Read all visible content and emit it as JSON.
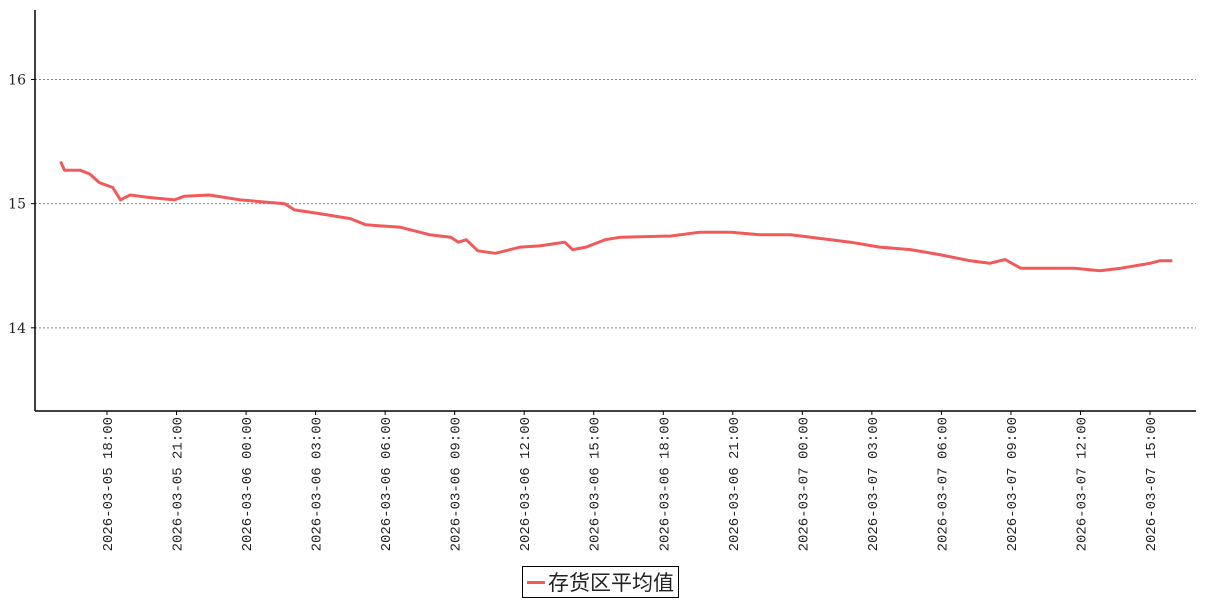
{
  "chart_data": {
    "type": "line",
    "title": "",
    "xlabel": "",
    "ylabel": "",
    "ylim": [
      13.33,
      16.56
    ],
    "yticks": [
      14,
      15,
      16
    ],
    "grid": "horizontal dotted",
    "legend_placement": "bottom-center",
    "xticks": [
      "2026-03-05 18:00",
      "2026-03-05 21:00",
      "2026-03-06 00:00",
      "2026-03-06 03:00",
      "2026-03-06 06:00",
      "2026-03-06 09:00",
      "2026-03-06 12:00",
      "2026-03-06 15:00",
      "2026-03-06 18:00",
      "2026-03-06 21:00",
      "2026-03-07 00:00",
      "2026-03-07 03:00",
      "2026-03-07 06:00",
      "2026-03-07 09:00",
      "2026-03-07 12:00",
      "2026-03-07 15:00"
    ],
    "series": [
      {
        "name": "存货区平均值",
        "color": "#f05a5a",
        "points": [
          [
            "2026-03-05 16:00",
            15.34
          ],
          [
            "2026-03-05 16:10",
            15.27
          ],
          [
            "2026-03-05 16:50",
            15.27
          ],
          [
            "2026-03-05 17:15",
            15.24
          ],
          [
            "2026-03-05 17:40",
            15.17
          ],
          [
            "2026-03-05 18:15",
            15.13
          ],
          [
            "2026-03-05 18:35",
            15.03
          ],
          [
            "2026-03-05 19:00",
            15.07
          ],
          [
            "2026-03-05 19:50",
            15.05
          ],
          [
            "2026-03-05 20:55",
            15.03
          ],
          [
            "2026-03-05 21:20",
            15.06
          ],
          [
            "2026-03-05 22:25",
            15.07
          ],
          [
            "2026-03-05 23:45",
            15.03
          ],
          [
            "2026-03-06 01:40",
            15.0
          ],
          [
            "2026-03-06 02:05",
            14.95
          ],
          [
            "2026-03-06 03:10",
            14.92
          ],
          [
            "2026-03-06 04:30",
            14.88
          ],
          [
            "2026-03-06 05:10",
            14.83
          ],
          [
            "2026-03-06 06:40",
            14.81
          ],
          [
            "2026-03-06 07:55",
            14.75
          ],
          [
            "2026-03-06 08:50",
            14.73
          ],
          [
            "2026-03-06 09:10",
            14.69
          ],
          [
            "2026-03-06 09:30",
            14.71
          ],
          [
            "2026-03-06 10:00",
            14.62
          ],
          [
            "2026-03-06 10:45",
            14.6
          ],
          [
            "2026-03-06 11:50",
            14.65
          ],
          [
            "2026-03-06 12:40",
            14.66
          ],
          [
            "2026-03-06 13:45",
            14.69
          ],
          [
            "2026-03-06 14:05",
            14.63
          ],
          [
            "2026-03-06 14:40",
            14.65
          ],
          [
            "2026-03-06 15:30",
            14.71
          ],
          [
            "2026-03-06 16:10",
            14.73
          ],
          [
            "2026-03-06 18:20",
            14.74
          ],
          [
            "2026-03-06 19:35",
            14.77
          ],
          [
            "2026-03-06 20:55",
            14.77
          ],
          [
            "2026-03-06 22:10",
            14.75
          ],
          [
            "2026-03-06 23:30",
            14.75
          ],
          [
            "2026-03-07 00:45",
            14.72
          ],
          [
            "2026-03-07 02:05",
            14.69
          ],
          [
            "2026-03-07 03:20",
            14.65
          ],
          [
            "2026-03-07 04:40",
            14.63
          ],
          [
            "2026-03-07 05:55",
            14.59
          ],
          [
            "2026-03-07 07:15",
            14.54
          ],
          [
            "2026-03-07 08:05",
            14.52
          ],
          [
            "2026-03-07 08:45",
            14.55
          ],
          [
            "2026-03-07 09:25",
            14.48
          ],
          [
            "2026-03-07 11:10",
            14.48
          ],
          [
            "2026-03-07 11:45",
            14.48
          ],
          [
            "2026-03-07 12:50",
            14.46
          ],
          [
            "2026-03-07 13:45",
            14.48
          ],
          [
            "2026-03-07 15:00",
            14.52
          ],
          [
            "2026-03-07 15:25",
            14.54
          ],
          [
            "2026-03-07 15:58",
            14.54
          ]
        ]
      }
    ]
  }
}
